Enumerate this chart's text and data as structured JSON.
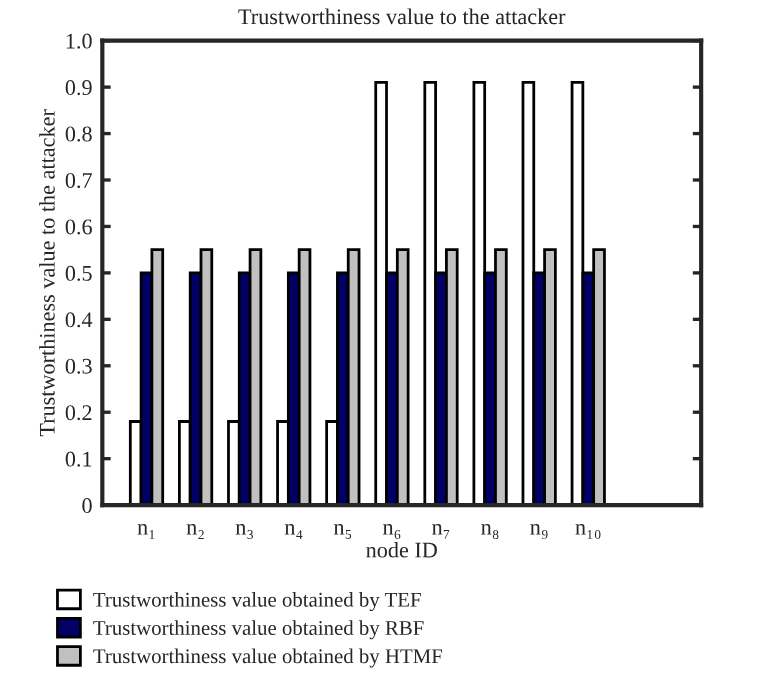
{
  "chart_data": {
    "type": "bar",
    "title": "Trustworthiness value to the attacker",
    "xlabel": "node ID",
    "ylabel": "Trustworthiness value to the attacker",
    "categories": [
      "n₁",
      "n₂",
      "n₃",
      "n₄",
      "n₅",
      "n₆",
      "n₇",
      "n₈",
      "n₉",
      "n₁₀"
    ],
    "series": [
      {
        "name": "Trustworthiness value obtained by TEF",
        "color": "#ffffff",
        "values": [
          0.18,
          0.18,
          0.18,
          0.18,
          0.18,
          0.91,
          0.91,
          0.91,
          0.91,
          0.91
        ]
      },
      {
        "name": "Trustworthiness value obtained by RBF",
        "color": "#000066",
        "values": [
          0.5,
          0.5,
          0.5,
          0.5,
          0.5,
          0.5,
          0.5,
          0.5,
          0.5,
          0.5
        ]
      },
      {
        "name": "Trustworthiness value obtained by HTMF",
        "color": "#c0c0c0",
        "values": [
          0.55,
          0.55,
          0.55,
          0.55,
          0.55,
          0.55,
          0.55,
          0.55,
          0.55,
          0.55
        ]
      }
    ],
    "ylim": [
      0,
      1.0
    ],
    "yticks": [
      {
        "value": 0,
        "label": "0"
      },
      0.1,
      0.2,
      0.3,
      0.4,
      0.5,
      0.6,
      0.7,
      0.8,
      0.9,
      {
        "value": 1.0,
        "label": "1.0"
      }
    ],
    "grid": false,
    "legend": "bottom"
  }
}
